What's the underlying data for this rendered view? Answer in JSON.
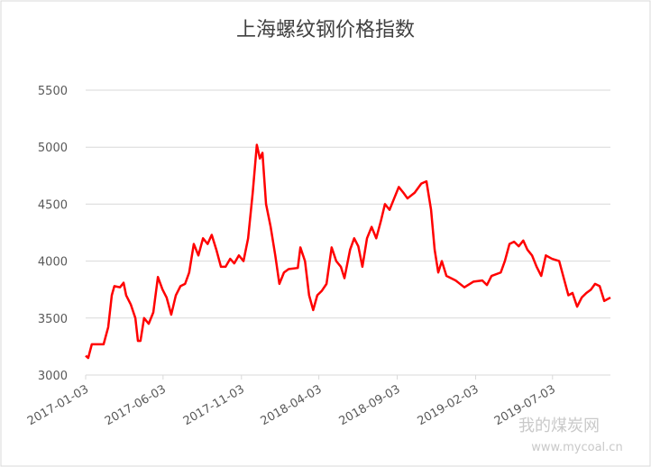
{
  "chart_data": {
    "type": "line",
    "title": "上海螺纹钢价格指数",
    "x": [
      "2017-01-03",
      "2017-01-08",
      "2017-01-15",
      "2017-02-07",
      "2017-02-16",
      "2017-02-23",
      "2017-02-28",
      "2017-03-11",
      "2017-03-18",
      "2017-03-23",
      "2017-04-01",
      "2017-04-10",
      "2017-04-15",
      "2017-04-20",
      "2017-04-27",
      "2017-05-06",
      "2017-05-15",
      "2017-05-24",
      "2017-06-02",
      "2017-06-10",
      "2017-06-19",
      "2017-06-28",
      "2017-07-07",
      "2017-07-16",
      "2017-07-24",
      "2017-08-02",
      "2017-08-11",
      "2017-08-20",
      "2017-08-29",
      "2017-09-06",
      "2017-09-15",
      "2017-09-24",
      "2017-10-03",
      "2017-10-12",
      "2017-10-20",
      "2017-10-29",
      "2017-11-07",
      "2017-11-16",
      "2017-11-25",
      "2017-12-03",
      "2017-12-09",
      "2017-12-14",
      "2017-12-21",
      "2017-12-30",
      "2018-01-08",
      "2018-01-16",
      "2018-01-25",
      "2018-02-03",
      "2018-02-21",
      "2018-02-26",
      "2018-03-07",
      "2018-03-15",
      "2018-03-23",
      "2018-03-31",
      "2018-04-09",
      "2018-04-18",
      "2018-04-28",
      "2018-05-07",
      "2018-05-16",
      "2018-05-23",
      "2018-06-03",
      "2018-06-11",
      "2018-06-19",
      "2018-06-27",
      "2018-07-06",
      "2018-07-15",
      "2018-07-24",
      "2018-08-02",
      "2018-08-10",
      "2018-08-19",
      "2018-08-28",
      "2018-09-06",
      "2018-09-15",
      "2018-09-23",
      "2018-10-07",
      "2018-10-20",
      "2018-10-30",
      "2018-11-08",
      "2018-11-15",
      "2018-11-22",
      "2018-11-29",
      "2018-12-08",
      "2018-12-26",
      "2019-01-12",
      "2019-01-30",
      "2019-02-16",
      "2019-02-25",
      "2019-03-06",
      "2019-03-24",
      "2019-04-01",
      "2019-04-10",
      "2019-04-19",
      "2019-04-28",
      "2019-05-07",
      "2019-05-15",
      "2019-05-24",
      "2019-06-02",
      "2019-06-11",
      "2019-06-20",
      "2019-07-02",
      "2019-07-16",
      "2019-07-25",
      "2019-08-03",
      "2019-08-11",
      "2019-08-20",
      "2019-08-29",
      "2019-09-07",
      "2019-09-16",
      "2019-09-24",
      "2019-10-03",
      "2019-10-12",
      "2019-10-24"
    ],
    "series": [
      {
        "name": "上海螺纹钢价格指数",
        "color": "#ff0000",
        "values": [
          3170,
          3150,
          3270,
          3270,
          3420,
          3700,
          3780,
          3770,
          3810,
          3700,
          3620,
          3500,
          3300,
          3300,
          3500,
          3450,
          3550,
          3860,
          3750,
          3680,
          3530,
          3700,
          3780,
          3800,
          3900,
          4150,
          4050,
          4200,
          4150,
          4230,
          4100,
          3950,
          3950,
          4020,
          3980,
          4050,
          4000,
          4200,
          4600,
          5020,
          4900,
          4950,
          4500,
          4300,
          4050,
          3800,
          3900,
          3930,
          3940,
          4120,
          4000,
          3700,
          3570,
          3700,
          3740,
          3800,
          4120,
          4000,
          3950,
          3850,
          4100,
          4200,
          4130,
          3950,
          4200,
          4300,
          4200,
          4350,
          4500,
          4450,
          4550,
          4650,
          4600,
          4550,
          4600,
          4680,
          4700,
          4450,
          4100,
          3900,
          4000,
          3870,
          3830,
          3770,
          3820,
          3830,
          3790,
          3870,
          3900,
          4000,
          4150,
          4170,
          4130,
          4180,
          4100,
          4050,
          3950,
          3870,
          4050,
          4020,
          4000,
          3850,
          3700,
          3720,
          3600,
          3680,
          3720,
          3750,
          3800,
          3780,
          3650,
          3680
        ]
      }
    ],
    "xlim": [
      "2017-01-03",
      "2019-10-24"
    ],
    "xticks": [
      "2017-01-03",
      "2017-06-03",
      "2017-11-03",
      "2018-04-03",
      "2018-09-03",
      "2019-02-03",
      "2019-07-03"
    ],
    "ylim": [
      3000,
      5500
    ],
    "yticks": [
      3000,
      3500,
      4000,
      4500,
      5000,
      5500
    ],
    "grid": true,
    "watermark": "我的煤炭网",
    "watermark_url": "www.mycoal.cn"
  }
}
